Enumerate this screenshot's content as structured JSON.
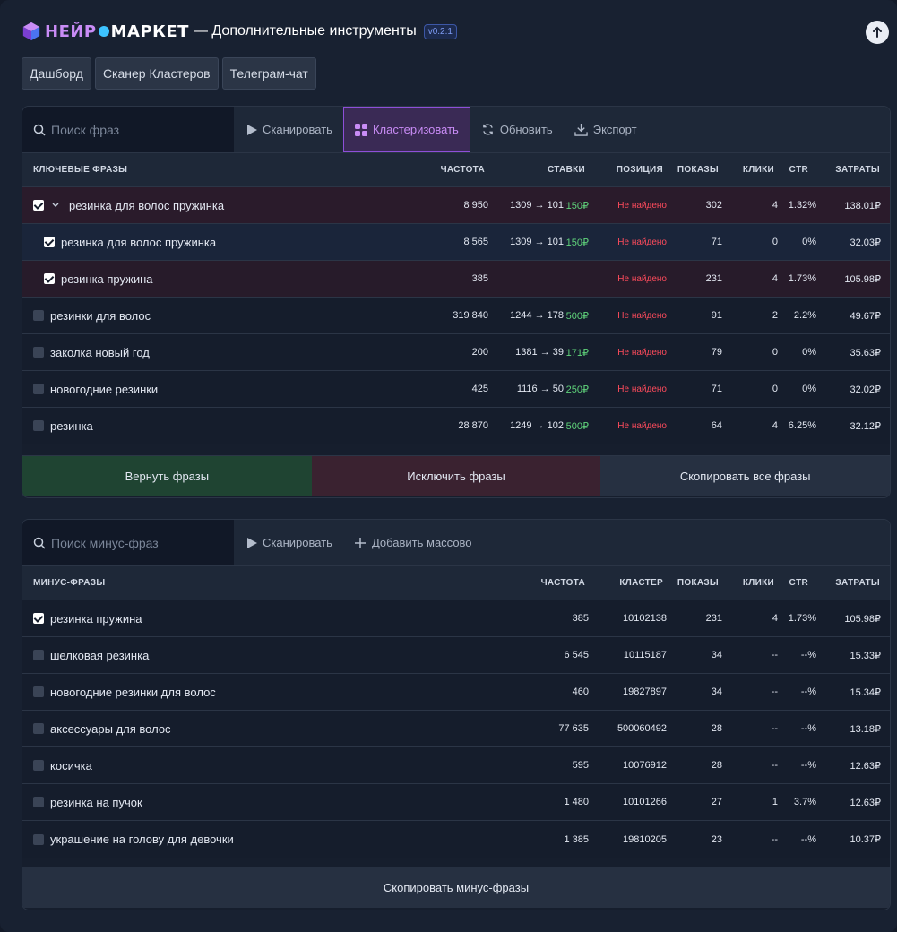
{
  "header": {
    "brand_part1": "НЕЙР",
    "brand_part2": "МАРКЕТ",
    "title": "— Дополнительные инструменты",
    "version": "v0.2.1"
  },
  "nav": {
    "tabs": [
      "Дашборд",
      "Сканер Кластеров",
      "Телеграм-чат"
    ]
  },
  "keywords": {
    "search_placeholder": "Поиск фраз",
    "toolbar": {
      "scan": "Сканировать",
      "cluster": "Кластеризовать",
      "refresh": "Обновить",
      "export": "Экспорт"
    },
    "columns": {
      "phrase": "КЛЮЧЕВЫЕ ФРАЗЫ",
      "freq": "ЧАСТОТА",
      "bids": "СТАВКИ",
      "position": "ПОЗИЦИЯ",
      "shows": "ПОКАЗЫ",
      "clicks": "КЛИКИ",
      "ctr": "CTR",
      "cost": "ЗАТРАТЫ"
    },
    "rows": [
      {
        "phrase": "резинка для волос пружинка",
        "freq": "8 950",
        "bid": "1309 → 101",
        "bid_price": "150₽",
        "position": "Не найдено",
        "shows": "302",
        "clicks": "4",
        "ctr": "1.32%",
        "cost": "138.01₽"
      },
      {
        "phrase": "резинка для волос пружинка",
        "freq": "8 565",
        "bid": "1309 → 101",
        "bid_price": "150₽",
        "position": "Не найдено",
        "shows": "71",
        "clicks": "0",
        "ctr": "0%",
        "cost": "32.03₽"
      },
      {
        "phrase": "резинка пружина",
        "freq": "385",
        "bid": "",
        "bid_price": "",
        "position": "Не найдено",
        "shows": "231",
        "clicks": "4",
        "ctr": "1.73%",
        "cost": "105.98₽"
      },
      {
        "phrase": "резинки для волос",
        "freq": "319 840",
        "bid": "1244 → 178",
        "bid_price": "500₽",
        "position": "Не найдено",
        "shows": "91",
        "clicks": "2",
        "ctr": "2.2%",
        "cost": "49.67₽"
      },
      {
        "phrase": "заколка новый год",
        "freq": "200",
        "bid": "1381 → 39",
        "bid_price": "171₽",
        "position": "Не найдено",
        "shows": "79",
        "clicks": "0",
        "ctr": "0%",
        "cost": "35.63₽"
      },
      {
        "phrase": "новогодние резинки",
        "freq": "425",
        "bid": "1116 → 50",
        "bid_price": "250₽",
        "position": "Не найдено",
        "shows": "71",
        "clicks": "0",
        "ctr": "0%",
        "cost": "32.02₽"
      },
      {
        "phrase": "резинка",
        "freq": "28 870",
        "bid": "1249 → 102",
        "bid_price": "500₽",
        "position": "Не найдено",
        "shows": "64",
        "clicks": "4",
        "ctr": "6.25%",
        "cost": "32.12₽"
      }
    ],
    "actions": {
      "return": "Вернуть фразы",
      "exclude": "Исключить фразы",
      "copy_all": "Скопировать все фразы"
    }
  },
  "minus": {
    "search_placeholder": "Поиск минус-фраз",
    "toolbar": {
      "scan": "Сканировать",
      "bulk_add": "Добавить массово"
    },
    "columns": {
      "phrase": "МИНУС-ФРАЗЫ",
      "freq": "ЧАСТОТА",
      "cluster": "КЛАСТЕР",
      "shows": "ПОКАЗЫ",
      "clicks": "КЛИКИ",
      "ctr": "CTR",
      "cost": "ЗАТРАТЫ"
    },
    "rows": [
      {
        "phrase": "резинка пружина",
        "freq": "385",
        "cluster": "10102138",
        "shows": "231",
        "clicks": "4",
        "ctr": "1.73%",
        "cost": "105.98₽"
      },
      {
        "phrase": "шелковая резинка",
        "freq": "6 545",
        "cluster": "10115187",
        "shows": "34",
        "clicks": "--",
        "ctr": "--%",
        "cost": "15.33₽"
      },
      {
        "phrase": "новогодние резинки для волос",
        "freq": "460",
        "cluster": "19827897",
        "shows": "34",
        "clicks": "--",
        "ctr": "--%",
        "cost": "15.34₽"
      },
      {
        "phrase": "аксессуары для волос",
        "freq": "77 635",
        "cluster": "500060492",
        "shows": "28",
        "clicks": "--",
        "ctr": "--%",
        "cost": "13.18₽"
      },
      {
        "phrase": "косичка",
        "freq": "595",
        "cluster": "10076912",
        "shows": "28",
        "clicks": "--",
        "ctr": "--%",
        "cost": "12.63₽"
      },
      {
        "phrase": "резинка на пучок",
        "freq": "1 480",
        "cluster": "10101266",
        "shows": "27",
        "clicks": "1",
        "ctr": "3.7%",
        "cost": "12.63₽"
      },
      {
        "phrase": "украшение на голову для девочки",
        "freq": "1 385",
        "cluster": "19810205",
        "shows": "23",
        "clicks": "--",
        "ctr": "--%",
        "cost": "10.37₽"
      }
    ],
    "copy_label": "Скопировать минус-фразы"
  },
  "colors": {
    "accent_purple": "#8d4fd8",
    "positive_green": "#5fd27a",
    "not_found_red": "#ff4b5c"
  }
}
